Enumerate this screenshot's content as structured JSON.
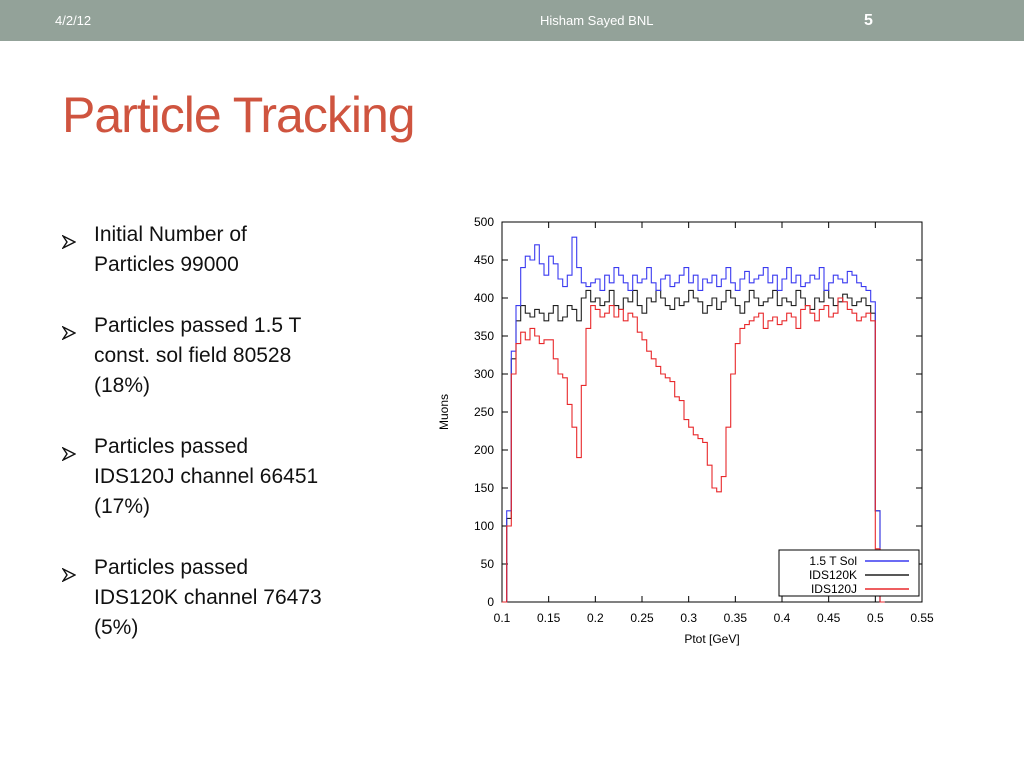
{
  "header": {
    "date": "4/2/12",
    "author": "Hisham Sayed BNL",
    "slide_number": "5"
  },
  "title": "Particle Tracking",
  "bullets": [
    {
      "line1": "Initial Number of",
      "line2": "Particles 99000",
      "line3": ""
    },
    {
      "line1": "Particles passed 1.5 T",
      "line2": "const. sol field 80528",
      "line3": "(18%)"
    },
    {
      "line1": "Particles passed",
      "line2": "IDS120J channel 66451",
      "line3": "(17%)"
    },
    {
      "line1": "Particles passed",
      "line2": "IDS120K channel 76473",
      "line3": "(5%)"
    }
  ],
  "colors": {
    "header_bar": "#93a299",
    "title": "#cf543f",
    "series_sol": "#3a3af0",
    "series_k": "#202020",
    "series_j": "#e8282b"
  },
  "chart_data": {
    "type": "line",
    "xlabel": "Ptot [GeV]",
    "ylabel": "Muons",
    "xlim": [
      0.1,
      0.55
    ],
    "ylim": [
      0,
      500
    ],
    "x_ticks": [
      "0.1",
      "0.15",
      "0.2",
      "0.25",
      "0.3",
      "0.35",
      "0.4",
      "0.45",
      "0.5",
      "0.55"
    ],
    "y_ticks": [
      "0",
      "50",
      "100",
      "150",
      "200",
      "250",
      "300",
      "350",
      "400",
      "450",
      "500"
    ],
    "legend_position": "bottom-right",
    "x": [
      0.1,
      0.105,
      0.11,
      0.115,
      0.12,
      0.125,
      0.13,
      0.135,
      0.14,
      0.145,
      0.15,
      0.155,
      0.16,
      0.165,
      0.17,
      0.175,
      0.18,
      0.185,
      0.19,
      0.195,
      0.2,
      0.205,
      0.21,
      0.215,
      0.22,
      0.225,
      0.23,
      0.235,
      0.24,
      0.245,
      0.25,
      0.255,
      0.26,
      0.265,
      0.27,
      0.275,
      0.28,
      0.285,
      0.29,
      0.295,
      0.3,
      0.305,
      0.31,
      0.315,
      0.32,
      0.325,
      0.33,
      0.335,
      0.34,
      0.345,
      0.35,
      0.355,
      0.36,
      0.365,
      0.37,
      0.375,
      0.38,
      0.385,
      0.39,
      0.395,
      0.4,
      0.405,
      0.41,
      0.415,
      0.42,
      0.425,
      0.43,
      0.435,
      0.44,
      0.445,
      0.45,
      0.455,
      0.46,
      0.465,
      0.47,
      0.475,
      0.48,
      0.485,
      0.49,
      0.495,
      0.5,
      0.505
    ],
    "series": [
      {
        "name": "1.5 T Sol",
        "values": [
          0,
          120,
          330,
          390,
          440,
          455,
          450,
          470,
          445,
          430,
          455,
          445,
          425,
          415,
          430,
          480,
          440,
          420,
          415,
          420,
          425,
          410,
          430,
          420,
          440,
          430,
          420,
          410,
          430,
          420,
          425,
          440,
          420,
          410,
          425,
          430,
          415,
          420,
          430,
          440,
          420,
          430,
          410,
          425,
          420,
          430,
          415,
          425,
          440,
          420,
          410,
          425,
          435,
          420,
          425,
          430,
          440,
          420,
          430,
          410,
          425,
          440,
          420,
          430,
          415,
          420,
          430,
          425,
          440,
          410,
          420,
          430,
          425,
          420,
          435,
          430,
          420,
          415,
          410,
          395,
          120,
          0
        ]
      },
      {
        "name": "IDS120K",
        "values": [
          0,
          110,
          320,
          370,
          390,
          380,
          375,
          385,
          380,
          370,
          380,
          390,
          370,
          375,
          390,
          385,
          370,
          400,
          410,
          395,
          400,
          390,
          395,
          410,
          390,
          385,
          400,
          395,
          410,
          390,
          380,
          400,
          395,
          410,
          400,
          390,
          385,
          400,
          390,
          395,
          410,
          400,
          395,
          380,
          390,
          400,
          385,
          395,
          410,
          400,
          390,
          380,
          395,
          410,
          400,
          390,
          395,
          400,
          410,
          390,
          400,
          395,
          390,
          410,
          400,
          390,
          385,
          400,
          395,
          410,
          400,
          390,
          395,
          405,
          400,
          390,
          395,
          400,
          390,
          380,
          120,
          0
        ]
      },
      {
        "name": "IDS120J",
        "values": [
          0,
          100,
          300,
          340,
          355,
          345,
          360,
          350,
          340,
          345,
          345,
          320,
          300,
          295,
          260,
          230,
          190,
          285,
          360,
          390,
          385,
          375,
          380,
          390,
          375,
          385,
          370,
          380,
          375,
          355,
          345,
          330,
          320,
          310,
          300,
          295,
          290,
          270,
          265,
          240,
          230,
          220,
          215,
          210,
          180,
          150,
          145,
          165,
          230,
          300,
          340,
          360,
          365,
          370,
          375,
          380,
          360,
          370,
          375,
          365,
          370,
          380,
          375,
          360,
          385,
          390,
          380,
          370,
          385,
          390,
          375,
          380,
          400,
          395,
          385,
          380,
          370,
          375,
          380,
          370,
          70,
          0
        ]
      }
    ]
  }
}
